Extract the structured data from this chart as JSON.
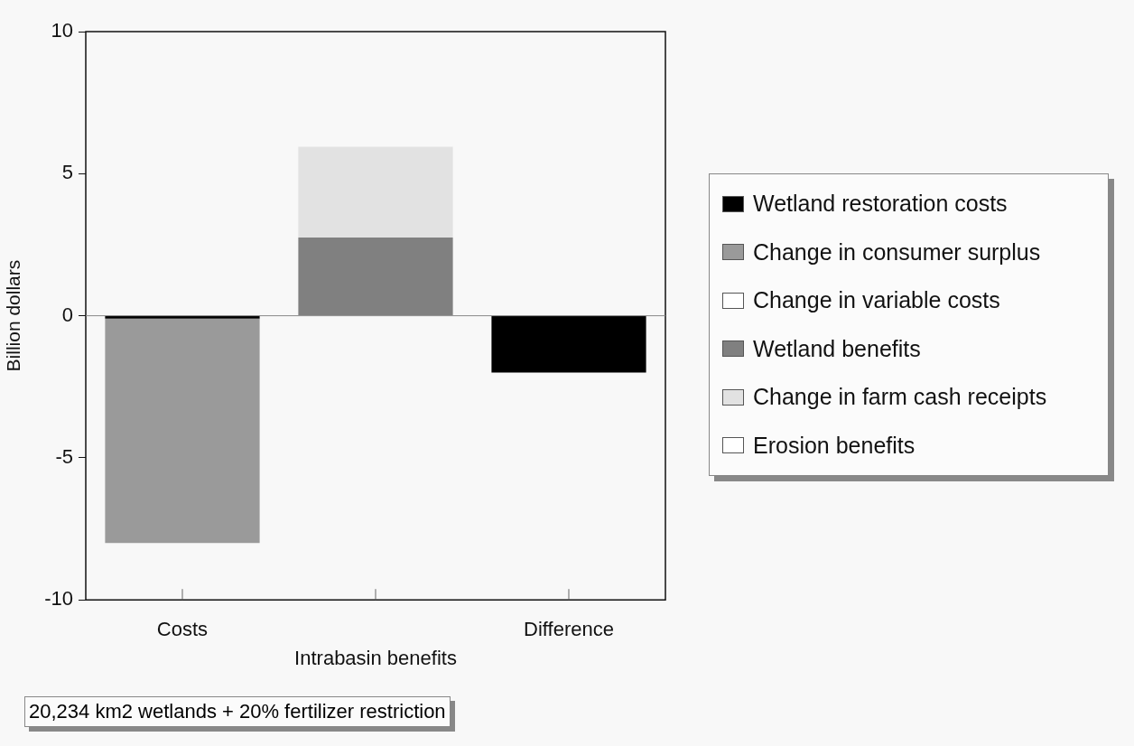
{
  "chart_data": {
    "type": "bar",
    "stacked": true,
    "ylabel": "Billion dollars",
    "categories": [
      "Costs",
      "Intrabasin benefits",
      "Difference"
    ],
    "series": [
      {
        "name": "Wetland restoration costs",
        "color": "#000000",
        "values": [
          -0.1,
          null,
          -2.0
        ]
      },
      {
        "name": "Change in consumer surplus",
        "color": "#9a9a9a",
        "values": [
          -7.9,
          null,
          null
        ]
      },
      {
        "name": "Change in variable costs",
        "color": "#ffffff",
        "values": [
          null,
          null,
          null
        ]
      },
      {
        "name": "Wetland benefits",
        "color": "#808080",
        "values": [
          null,
          2.75,
          null
        ]
      },
      {
        "name": "Change in farm cash receipts",
        "color": "#e2e2e2",
        "values": [
          null,
          3.2,
          null
        ]
      },
      {
        "name": "Erosion benefits",
        "color": "#ffffff",
        "values": [
          null,
          null,
          null
        ]
      }
    ],
    "ylim": [
      -10,
      10
    ],
    "yticks": [
      -10,
      -5,
      0,
      5,
      10
    ],
    "grid": false,
    "legend": "right",
    "ref_lines": [
      {
        "axis": "y",
        "value": 0,
        "color": "#888888"
      }
    ],
    "annotations": [
      "20,234 km2 wetlands + 20% fertilizer restriction"
    ]
  }
}
